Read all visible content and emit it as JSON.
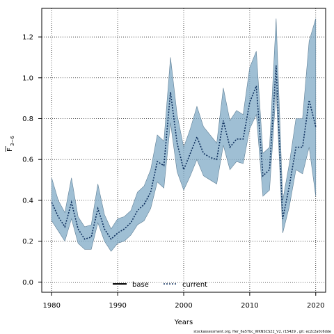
{
  "chart_data": {
    "type": "line",
    "xlabel": "Years",
    "ylabel_main": "F",
    "ylabel_sub": "3−6",
    "xlim": [
      1978.5,
      2021.5
    ],
    "ylim": [
      -0.05,
      1.34
    ],
    "x_ticks": [
      1980,
      1990,
      2000,
      2010,
      2020
    ],
    "y_ticks": [
      0.0,
      0.2,
      0.4,
      0.6,
      0.8,
      1.0,
      1.2
    ],
    "y_tick_labels": [
      "0.0",
      "0.2",
      "0.4",
      "0.6",
      "0.8",
      "1.0",
      "1.2"
    ],
    "grid": true,
    "legend_position": "bottom-center",
    "x": [
      1980,
      1981,
      1982,
      1983,
      1984,
      1985,
      1986,
      1987,
      1988,
      1989,
      1990,
      1991,
      1992,
      1993,
      1994,
      1995,
      1996,
      1997,
      1998,
      1999,
      2000,
      2001,
      2002,
      2003,
      2004,
      2005,
      2006,
      2007,
      2008,
      2009,
      2010,
      2011,
      2012,
      2013,
      2014,
      2015,
      2016,
      2017,
      2018,
      2019,
      2020
    ],
    "series": [
      {
        "name": "base",
        "color": "#000000",
        "style": "solid",
        "values": [
          null,
          null,
          null,
          null,
          null,
          null,
          null,
          null,
          null,
          null,
          null,
          null,
          null,
          null,
          null,
          null,
          null,
          null,
          null,
          null,
          null,
          null,
          null,
          null,
          null,
          null,
          null,
          null,
          null,
          null,
          null,
          null,
          null,
          null,
          null,
          null,
          null,
          null,
          null,
          null,
          null
        ]
      },
      {
        "name": "current",
        "color": "#0b2d5c",
        "style": "dotted",
        "values": [
          0.39,
          0.32,
          0.27,
          0.39,
          0.26,
          0.21,
          0.22,
          0.36,
          0.26,
          0.21,
          0.24,
          0.26,
          0.29,
          0.35,
          0.38,
          0.44,
          0.59,
          0.57,
          0.93,
          0.68,
          0.55,
          0.63,
          0.71,
          0.63,
          0.61,
          0.6,
          0.79,
          0.66,
          0.7,
          0.7,
          0.88,
          0.96,
          0.52,
          0.55,
          1.06,
          0.31,
          0.47,
          0.66,
          0.66,
          0.89,
          0.76
        ]
      }
    ],
    "band": {
      "color": "#7fa9c5",
      "lower": [
        0.3,
        0.25,
        0.2,
        0.31,
        0.19,
        0.16,
        0.16,
        0.29,
        0.2,
        0.15,
        0.19,
        0.2,
        0.23,
        0.28,
        0.3,
        0.36,
        0.49,
        0.46,
        0.78,
        0.54,
        0.45,
        0.52,
        0.6,
        0.52,
        0.5,
        0.48,
        0.67,
        0.55,
        0.59,
        0.58,
        0.75,
        0.82,
        0.42,
        0.45,
        0.94,
        0.24,
        0.37,
        0.55,
        0.53,
        0.66,
        0.42
      ],
      "upper": [
        0.51,
        0.4,
        0.34,
        0.51,
        0.32,
        0.27,
        0.28,
        0.48,
        0.33,
        0.26,
        0.31,
        0.32,
        0.35,
        0.44,
        0.47,
        0.55,
        0.72,
        0.69,
        1.1,
        0.82,
        0.66,
        0.75,
        0.86,
        0.76,
        0.72,
        0.68,
        0.95,
        0.79,
        0.84,
        0.82,
        1.05,
        1.13,
        0.63,
        0.66,
        1.29,
        0.4,
        0.58,
        0.8,
        0.8,
        1.18,
        1.29
      ]
    },
    "footnote": "stockassessment.org, Her_6a57bc_WKNSCS22_V2, r15429 , git: ec2c2a0c6dde"
  }
}
